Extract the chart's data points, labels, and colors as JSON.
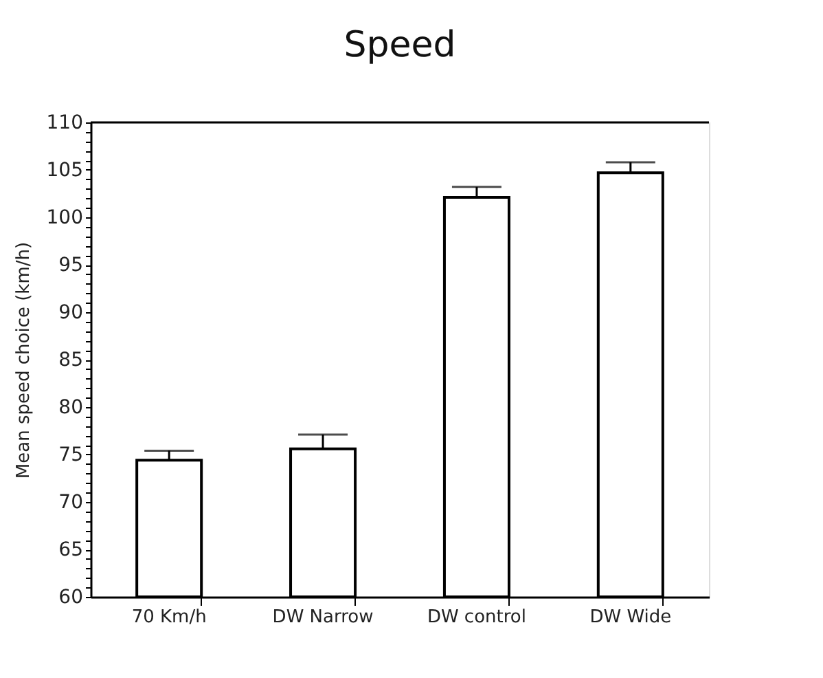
{
  "chart_data": {
    "type": "bar",
    "title": "Speed",
    "ylabel": "Mean speed choice (km/h)",
    "categories": [
      "70 Km/h",
      "DW Narrow",
      "DW control",
      "DW Wide"
    ],
    "values": [
      74.4,
      75.6,
      102.1,
      104.7
    ],
    "errors": [
      [
        74.4,
        75.4
      ],
      [
        75.6,
        77.1
      ],
      [
        102.1,
        103.2
      ],
      [
        104.7,
        105.8
      ]
    ],
    "color": "#ffffff",
    "ylim": [
      60,
      110
    ],
    "yticks": [
      60,
      {
        "value": 61,
        "label": null
      },
      {
        "value": 62,
        "label": null
      },
      {
        "value": 63,
        "label": null
      },
      {
        "value": 64,
        "label": null
      },
      65,
      {
        "value": 66,
        "label": null
      },
      {
        "value": 67,
        "label": null
      },
      {
        "value": 68,
        "label": null
      },
      {
        "value": 69,
        "label": null
      },
      70,
      {
        "value": 71,
        "label": null
      },
      {
        "value": 72,
        "label": null
      },
      {
        "value": 73,
        "label": null
      },
      {
        "value": 74,
        "label": null
      },
      75,
      {
        "value": 76,
        "label": null
      },
      {
        "value": 77,
        "label": null
      },
      {
        "value": 78,
        "label": null
      },
      {
        "value": 79,
        "label": null
      },
      80,
      {
        "value": 81,
        "label": null
      },
      {
        "value": 82,
        "label": null
      },
      {
        "value": 83,
        "label": null
      },
      {
        "value": 84,
        "label": null
      },
      85,
      {
        "value": 86,
        "label": null
      },
      {
        "value": 87,
        "label": null
      },
      {
        "value": 88,
        "label": null
      },
      {
        "value": 89,
        "label": null
      },
      90,
      {
        "value": 91,
        "label": null
      },
      {
        "value": 92,
        "label": null
      },
      {
        "value": 93,
        "label": null
      },
      {
        "value": 94,
        "label": null
      },
      95,
      {
        "value": 96,
        "label": null
      },
      {
        "value": 97,
        "label": null
      },
      {
        "value": 98,
        "label": null
      },
      {
        "value": 99,
        "label": null
      },
      100,
      {
        "value": 101,
        "label": null
      },
      {
        "value": 102,
        "label": null
      },
      {
        "value": 103,
        "label": null
      },
      {
        "value": 104,
        "label": null
      },
      105,
      {
        "value": 106,
        "label": null
      },
      {
        "value": 107,
        "label": null
      },
      {
        "value": 108,
        "label": null
      },
      {
        "value": 109,
        "label": null
      },
      110
    ],
    "grid": false
  }
}
